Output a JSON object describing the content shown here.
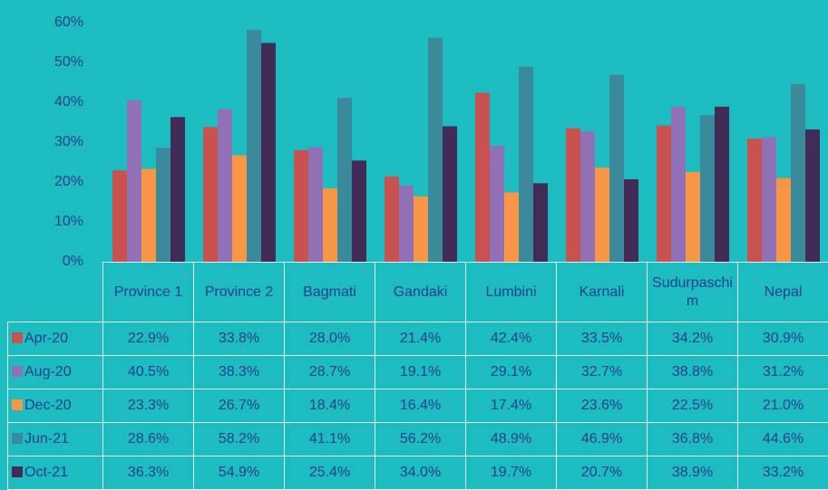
{
  "chart_data": {
    "type": "bar",
    "categories": [
      "Province 1",
      "Province 2",
      "Bagmati",
      "Gandaki",
      "Lumbini",
      "Karnali",
      "Sudurpaschim",
      "Nepal"
    ],
    "series": [
      {
        "name": "Apr-20",
        "color": "#c8524e",
        "values": [
          22.9,
          33.8,
          28.0,
          21.4,
          42.4,
          33.5,
          34.2,
          30.9
        ],
        "value_labels": [
          "22.9%",
          "33.8%",
          "28.0%",
          "21.4%",
          "42.4%",
          "33.5%",
          "34.2%",
          "30.9%"
        ]
      },
      {
        "name": "Aug-20",
        "color": "#9170b6",
        "values": [
          40.5,
          38.3,
          28.7,
          19.1,
          29.1,
          32.7,
          38.8,
          31.2
        ],
        "value_labels": [
          "40.5%",
          "38.3%",
          "28.7%",
          "19.1%",
          "29.1%",
          "32.7%",
          "38.8%",
          "31.2%"
        ]
      },
      {
        "name": "Dec-20",
        "color": "#f79646",
        "values": [
          23.3,
          26.7,
          18.4,
          16.4,
          17.4,
          23.6,
          22.5,
          21.0
        ],
        "value_labels": [
          "23.3%",
          "26.7%",
          "18.4%",
          "16.4%",
          "17.4%",
          "23.6%",
          "22.5%",
          "21.0%"
        ]
      },
      {
        "name": "Jun-21",
        "color": "#3a8a9c",
        "values": [
          28.6,
          58.2,
          41.1,
          56.2,
          48.9,
          46.9,
          36.8,
          44.6
        ],
        "value_labels": [
          "28.6%",
          "58.2%",
          "41.1%",
          "56.2%",
          "48.9%",
          "46.9%",
          "36.8%",
          "44.6%"
        ]
      },
      {
        "name": "Oct-21",
        "color": "#412c58",
        "values": [
          36.3,
          54.9,
          25.4,
          34.0,
          19.7,
          20.7,
          38.9,
          33.2
        ],
        "value_labels": [
          "36.3%",
          "54.9%",
          "25.4%",
          "34.0%",
          "19.7%",
          "20.7%",
          "38.9%",
          "33.2%"
        ]
      }
    ],
    "ylim": [
      0,
      60
    ],
    "yticks": [
      {
        "value": 0,
        "label": "0%"
      },
      {
        "value": 10,
        "label": "10%"
      },
      {
        "value": 20,
        "label": "20%"
      },
      {
        "value": 30,
        "label": "30%"
      },
      {
        "value": 40,
        "label": "40%"
      },
      {
        "value": 50,
        "label": "50%"
      },
      {
        "value": 60,
        "label": "60%"
      }
    ],
    "grid": false
  }
}
